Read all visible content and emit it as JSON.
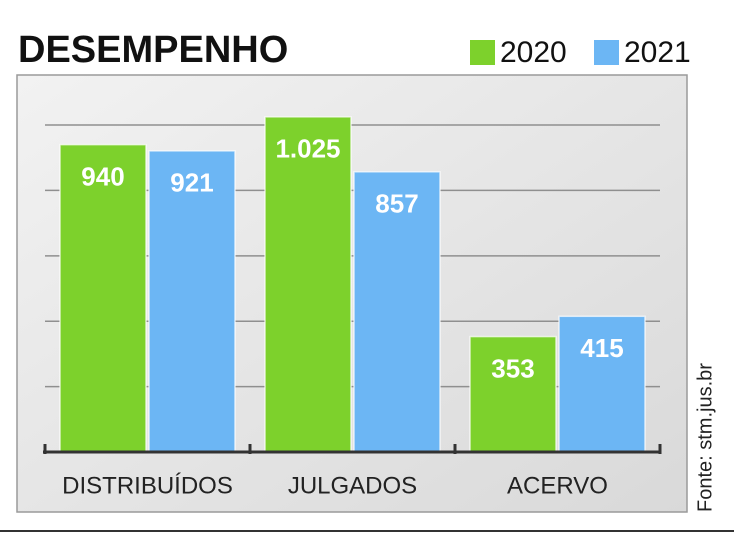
{
  "chart_data": {
    "type": "bar",
    "title": "DESEMPENHO",
    "categories": [
      "DISTRIBUÍDOS",
      "JULGADOS",
      "ACERVO"
    ],
    "series": [
      {
        "name": "2020",
        "color": "#7dd12c",
        "values": [
          940,
          1025,
          353
        ],
        "value_labels": [
          "940",
          "1.025",
          "353"
        ]
      },
      {
        "name": "2021",
        "color": "#6cb6f4",
        "values": [
          921,
          857,
          415
        ],
        "value_labels": [
          "921",
          "857",
          "415"
        ]
      }
    ],
    "ylim": [
      0,
      1150
    ],
    "yticks": [
      0,
      200,
      400,
      600,
      800,
      1000
    ],
    "grid": true,
    "legend": "top-right",
    "source": "Fonte: stm.jus.br"
  }
}
